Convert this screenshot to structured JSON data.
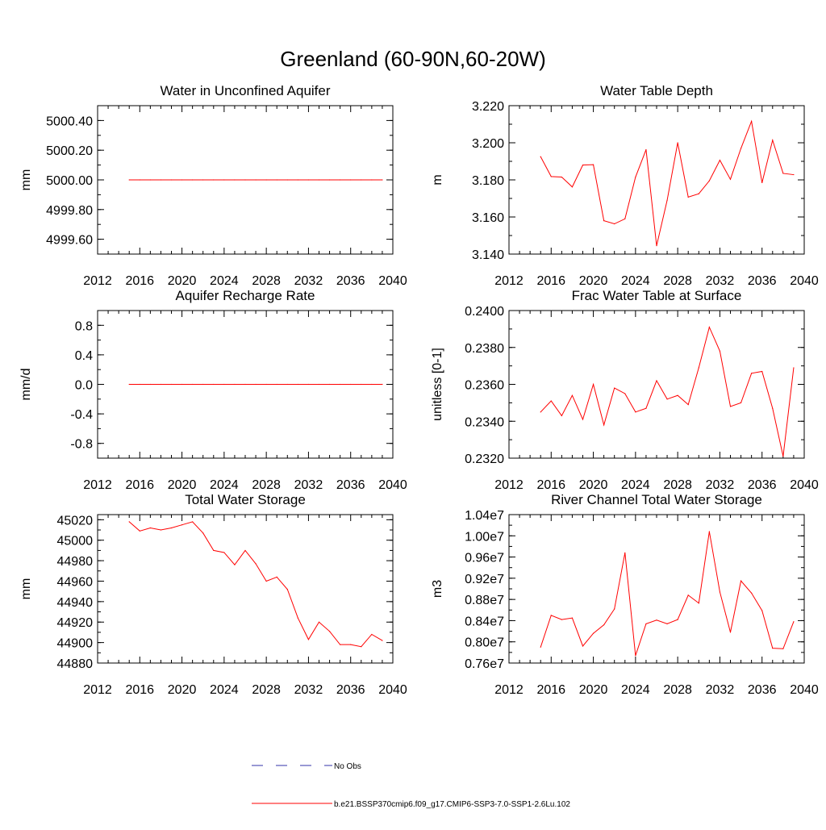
{
  "page": {
    "title": "Greenland (60-90N,60-20W)"
  },
  "colors": {
    "series": "#ff0000",
    "obs": "#3333aa",
    "axis": "#000000"
  },
  "legend": {
    "entries": [
      {
        "label": "No Obs",
        "style": "dashed",
        "color": "#3333aa"
      },
      {
        "label": "b.e21.BSSP370cmip6.f09_g17.CMIP6-SSP3-7.0-SSP1-2.6Lu.102",
        "style": "solid",
        "color": "#ff0000"
      }
    ]
  },
  "chart_data": [
    {
      "type": "line",
      "title": "Water in Unconfined Aquifer",
      "ylabel": "mm",
      "xlim": [
        2012,
        2040
      ],
      "ylim": [
        4999.5,
        5000.5
      ],
      "xticks": [
        2012,
        2016,
        2020,
        2024,
        2028,
        2032,
        2036,
        2040
      ],
      "xtick_labels": [
        "2012",
        "2016",
        "2020",
        "2024",
        "2028",
        "2032",
        "2036",
        "2040"
      ],
      "yticks": [
        4999.6,
        4999.8,
        5000.0,
        5000.2,
        5000.4
      ],
      "ytick_labels": [
        "4999.60",
        "4999.80",
        "5000.00",
        "5000.20",
        "5000.40"
      ],
      "x": [
        2015,
        2016,
        2017,
        2018,
        2019,
        2020,
        2021,
        2022,
        2023,
        2024,
        2025,
        2026,
        2027,
        2028,
        2029,
        2030,
        2031,
        2032,
        2033,
        2034,
        2035,
        2036,
        2037,
        2038,
        2039
      ],
      "values": [
        5000,
        5000,
        5000,
        5000,
        5000,
        5000,
        5000,
        5000,
        5000,
        5000,
        5000,
        5000,
        5000,
        5000,
        5000,
        5000,
        5000,
        5000,
        5000,
        5000,
        5000,
        5000,
        5000,
        5000,
        5000
      ]
    },
    {
      "type": "line",
      "title": "Water Table Depth",
      "ylabel": "m",
      "xlim": [
        2012,
        2040
      ],
      "ylim": [
        3.14,
        3.22
      ],
      "xticks": [
        2012,
        2016,
        2020,
        2024,
        2028,
        2032,
        2036,
        2040
      ],
      "xtick_labels": [
        "2012",
        "2016",
        "2020",
        "2024",
        "2028",
        "2032",
        "2036",
        "2040"
      ],
      "yticks": [
        3.14,
        3.16,
        3.18,
        3.2,
        3.22
      ],
      "ytick_labels": [
        "3.140",
        "3.160",
        "3.180",
        "3.200",
        "3.220"
      ],
      "x": [
        2015,
        2016,
        2017,
        2018,
        2019,
        2020,
        2021,
        2022,
        2023,
        2024,
        2025,
        2026,
        2027,
        2028,
        2029,
        2030,
        2031,
        2032,
        2033,
        2034,
        2035,
        2036,
        2037,
        2038,
        2039
      ],
      "values": [
        3.1925,
        3.1818,
        3.1815,
        3.1762,
        3.188,
        3.1882,
        3.158,
        3.1563,
        3.159,
        3.1815,
        3.1963,
        3.1445,
        3.169,
        3.2,
        3.1707,
        3.1725,
        3.1795,
        3.1906,
        3.1803,
        3.197,
        3.2116,
        3.1785,
        3.2014,
        3.1835,
        3.1828
      ]
    },
    {
      "type": "line",
      "title": "Aquifer Recharge Rate",
      "ylabel": "mm/d",
      "xlim": [
        2012,
        2040
      ],
      "ylim": [
        -1.0,
        1.0
      ],
      "xticks": [
        2012,
        2016,
        2020,
        2024,
        2028,
        2032,
        2036,
        2040
      ],
      "xtick_labels": [
        "2012",
        "2016",
        "2020",
        "2024",
        "2028",
        "2032",
        "2036",
        "2040"
      ],
      "yticks": [
        -0.8,
        -0.4,
        0.0,
        0.4,
        0.8
      ],
      "ytick_labels": [
        "-0.8",
        "-0.4",
        "0.0",
        "0.4",
        "0.8"
      ],
      "x": [
        2015,
        2016,
        2017,
        2018,
        2019,
        2020,
        2021,
        2022,
        2023,
        2024,
        2025,
        2026,
        2027,
        2028,
        2029,
        2030,
        2031,
        2032,
        2033,
        2034,
        2035,
        2036,
        2037,
        2038,
        2039
      ],
      "values": [
        0,
        0,
        0,
        0,
        0,
        0,
        0,
        0,
        0,
        0,
        0,
        0,
        0,
        0,
        0,
        0,
        0,
        0,
        0,
        0,
        0,
        0,
        0,
        0,
        0
      ]
    },
    {
      "type": "line",
      "title": "Frac Water Table at Surface",
      "ylabel": "unitless [0-1]",
      "xlim": [
        2012,
        2040
      ],
      "ylim": [
        0.232,
        0.24
      ],
      "xticks": [
        2012,
        2016,
        2020,
        2024,
        2028,
        2032,
        2036,
        2040
      ],
      "xtick_labels": [
        "2012",
        "2016",
        "2020",
        "2024",
        "2028",
        "2032",
        "2036",
        "2040"
      ],
      "yticks": [
        0.232,
        0.234,
        0.236,
        0.238,
        0.24
      ],
      "ytick_labels": [
        "0.2320",
        "0.2340",
        "0.2360",
        "0.2380",
        "0.2400"
      ],
      "x": [
        2015,
        2016,
        2017,
        2018,
        2019,
        2020,
        2021,
        2022,
        2023,
        2024,
        2025,
        2026,
        2027,
        2028,
        2029,
        2030,
        2031,
        2032,
        2033,
        2034,
        2035,
        2036,
        2037,
        2038,
        2039
      ],
      "values": [
        0.2345,
        0.2351,
        0.2343,
        0.2354,
        0.2341,
        0.236,
        0.2338,
        0.2358,
        0.2355,
        0.2345,
        0.2347,
        0.2362,
        0.2352,
        0.2354,
        0.2349,
        0.2369,
        0.2391,
        0.2378,
        0.2348,
        0.235,
        0.2366,
        0.2367,
        0.2347,
        0.2321,
        0.2369
      ]
    },
    {
      "type": "line",
      "title": "Total Water Storage",
      "ylabel": "mm",
      "xlim": [
        2012,
        2040
      ],
      "ylim": [
        44880,
        45025
      ],
      "xticks": [
        2012,
        2016,
        2020,
        2024,
        2028,
        2032,
        2036,
        2040
      ],
      "xtick_labels": [
        "2012",
        "2016",
        "2020",
        "2024",
        "2028",
        "2032",
        "2036",
        "2040"
      ],
      "yticks": [
        44880,
        44900,
        44920,
        44940,
        44960,
        44980,
        45000,
        45020
      ],
      "ytick_labels": [
        "44880",
        "44900",
        "44920",
        "44940",
        "44960",
        "44980",
        "45000",
        "45020"
      ],
      "x": [
        2015,
        2016,
        2017,
        2018,
        2019,
        2020,
        2021,
        2022,
        2023,
        2024,
        2025,
        2026,
        2027,
        2028,
        2029,
        2030,
        2031,
        2032,
        2033,
        2034,
        2035,
        2036,
        2037,
        2038,
        2039
      ],
      "values": [
        45018,
        45009,
        45012,
        45010,
        45012,
        45015,
        45018,
        45007,
        44990,
        44988,
        44976,
        44990,
        44977,
        44960,
        44964,
        44952,
        44924,
        44903,
        44920,
        44911,
        44898,
        44898,
        44896,
        44908,
        44902
      ]
    },
    {
      "type": "line",
      "title": "River Channel Total Water Storage",
      "ylabel": "m3",
      "xlim": [
        2012,
        2040
      ],
      "ylim": [
        7600000,
        10400000
      ],
      "xticks": [
        2012,
        2016,
        2020,
        2024,
        2028,
        2032,
        2036,
        2040
      ],
      "xtick_labels": [
        "2012",
        "2016",
        "2020",
        "2024",
        "2028",
        "2032",
        "2036",
        "2040"
      ],
      "yticks": [
        7600000,
        8000000,
        8400000,
        8800000,
        9200000,
        9600000,
        10000000,
        10400000
      ],
      "ytick_labels": [
        "0.76e7",
        "0.80e7",
        "0.84e7",
        "0.88e7",
        "0.92e7",
        "0.96e7",
        "1.00e7",
        "1.04e7"
      ],
      "x": [
        2015,
        2016,
        2017,
        2018,
        2019,
        2020,
        2021,
        2022,
        2023,
        2024,
        2025,
        2026,
        2027,
        2028,
        2029,
        2030,
        2031,
        2032,
        2033,
        2034,
        2035,
        2036,
        2037,
        2038,
        2039
      ],
      "values": [
        7900000,
        8500000,
        8420000,
        8450000,
        7920000,
        8160000,
        8320000,
        8620000,
        9680000,
        7740000,
        8340000,
        8410000,
        8340000,
        8420000,
        8880000,
        8730000,
        10080000,
        8940000,
        8180000,
        9150000,
        8920000,
        8590000,
        7880000,
        7870000,
        8380000
      ]
    }
  ]
}
